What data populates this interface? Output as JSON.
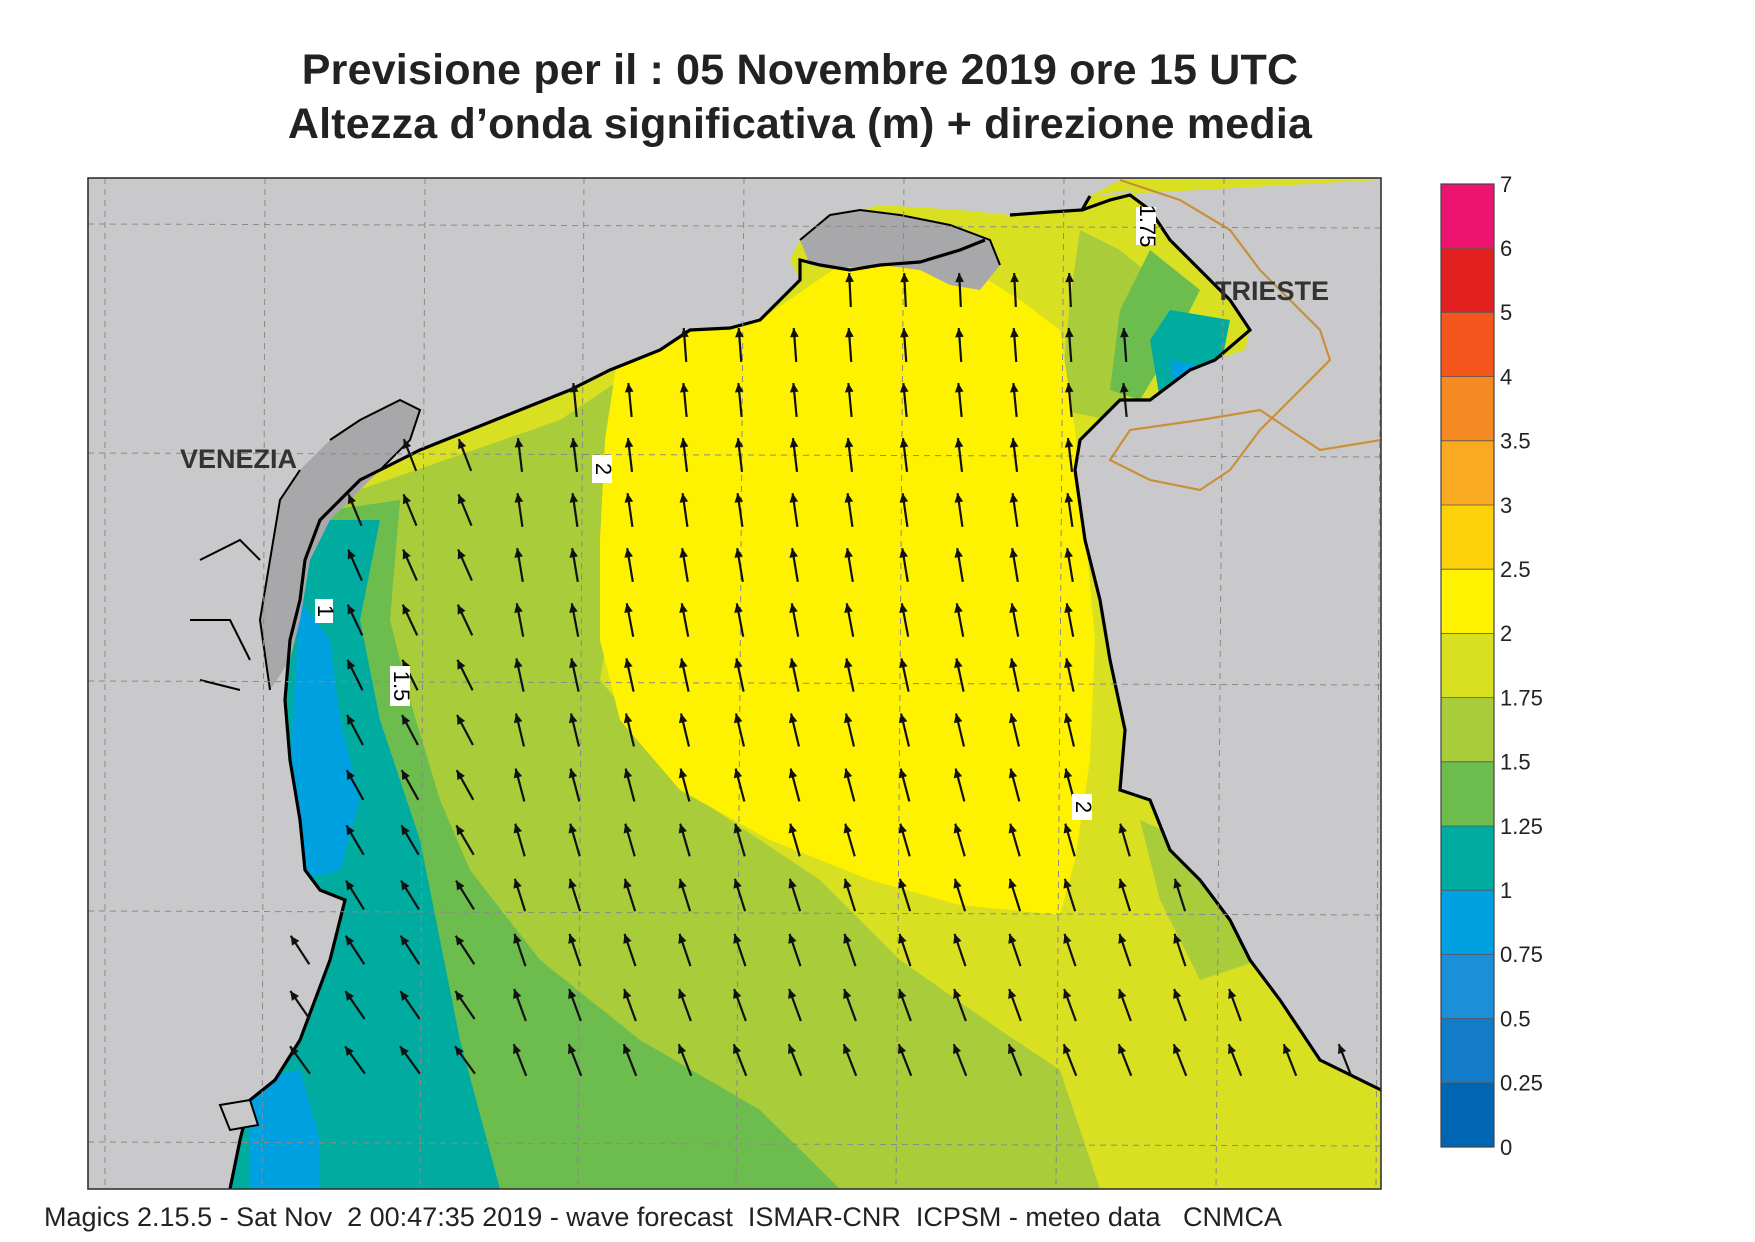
{
  "header": {
    "title_line1": "Previsione per il  :  05 Novembre  2019   ore 15 UTC",
    "title_line2": "Altezza d’onda significativa (m) + direzione media"
  },
  "map": {
    "place_labels": [
      "VENEZIA",
      "TRIESTE"
    ],
    "contour_labels": [
      "2",
      "1.5",
      "1",
      "2",
      "1.75"
    ],
    "colors": {
      "land": "#c9c9cb",
      "lagoon_land": "#a8a8aa",
      "coast": "#000000",
      "border": "#c8903a",
      "grid": "#8a8a8a"
    }
  },
  "legend": {
    "labels": [
      "7",
      "6",
      "5",
      "4",
      "3.5",
      "3",
      "2.5",
      "2",
      "1.75",
      "1.5",
      "1.25",
      "1",
      "0.75",
      "0.5",
      "0.25",
      "0"
    ],
    "colors": [
      "#ec1470",
      "#e32020",
      "#f4561e",
      "#f58a22",
      "#f9aa20",
      "#fcd10a",
      "#fff200",
      "#d9e021",
      "#a9cc3a",
      "#6cbd4e",
      "#00ac9f",
      "#00a1e0",
      "#1b8fd8",
      "#137cc9",
      "#0066b3"
    ]
  },
  "footer": {
    "text": "Magics 2.15.5 - Sat Nov  2 00:47:35 2019 - wave forecast  ISMAR-CNR  ICPSM - meteo data   CNMCA"
  }
}
